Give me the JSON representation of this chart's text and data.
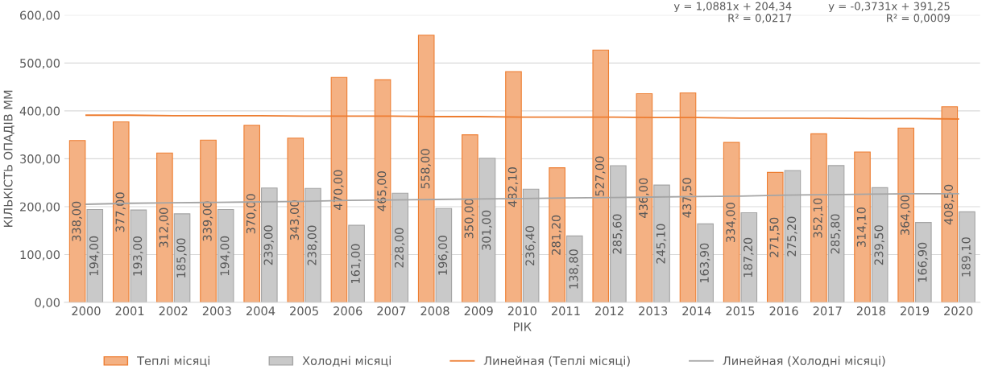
{
  "chart_data": {
    "type": "bar",
    "xlabel": "РІК",
    "ylabel": "КІЛЬКІСТЬ ОПАДІВ ММ",
    "categories": [
      "2000",
      "2001",
      "2002",
      "2003",
      "2004",
      "2005",
      "2006",
      "2007",
      "2008",
      "2009",
      "2010",
      "2011",
      "2012",
      "2013",
      "2014",
      "2015",
      "2016",
      "2017",
      "2018",
      "2019",
      "2020"
    ],
    "series": [
      {
        "name": "Теплі місяці",
        "color": "#f4b183",
        "values": [
          338,
          377,
          312,
          339,
          370,
          343,
          470,
          465,
          558,
          350,
          482.1,
          281.2,
          527,
          436,
          437.5,
          334,
          271.5,
          352.1,
          314.1,
          364,
          408.5
        ],
        "value_labels": [
          "338,00",
          "377,00",
          "312,00",
          "339,00",
          "370,00",
          "343,00",
          "470,00",
          "465,00",
          "558,00",
          "350,00",
          "482,10",
          "281,20",
          "527,00",
          "436,00",
          "437,50",
          "334,00",
          "271,50",
          "352,10",
          "314,10",
          "364,00",
          "408,50"
        ]
      },
      {
        "name": "Холодні місяці",
        "color": "#c9c9c9",
        "values": [
          194,
          193,
          185,
          194,
          239,
          238,
          161,
          228,
          196,
          301,
          236.4,
          138.8,
          285.6,
          245.1,
          163.9,
          187.2,
          275.2,
          285.8,
          239.5,
          166.9,
          189.1
        ],
        "value_labels": [
          "194,00",
          "193,00",
          "185,00",
          "194,00",
          "239,00",
          "238,00",
          "161,00",
          "228,00",
          "196,00",
          "301,00",
          "236,40",
          "138,80",
          "285,60",
          "245,10",
          "163,90",
          "187,20",
          "275,20",
          "285,80",
          "239,50",
          "166,90",
          "189,10"
        ]
      },
      {
        "name": "Линейная (Теплі місяці)",
        "type": "line",
        "color": "#ed7d31",
        "values": [
          391,
          391,
          390,
          390,
          390,
          389,
          389,
          389,
          388,
          388,
          387,
          387,
          387,
          386,
          386,
          385,
          385,
          385,
          384,
          384,
          383
        ]
      },
      {
        "name": "Линейная (Холодні місяці)",
        "type": "line",
        "color": "#a5a5a5",
        "values": [
          205,
          207,
          208,
          209,
          210,
          211,
          213,
          214,
          215,
          216,
          217,
          218,
          219,
          220,
          221,
          222,
          224,
          225,
          226,
          227,
          227
        ]
      }
    ],
    "ylim": [
      0,
      600
    ],
    "yticks": [
      {
        "value": 0,
        "label": "0,00"
      },
      {
        "value": 100,
        "label": "100,00"
      },
      {
        "value": 200,
        "label": "200,00"
      },
      {
        "value": 300,
        "label": "300,00"
      },
      {
        "value": 400,
        "label": "400,00"
      },
      {
        "value": 500,
        "label": "500,00"
      },
      {
        "value": 600,
        "label": "600,00"
      }
    ],
    "annotations": [
      "y = 1,0881x + 204,34\nR² = 0,0217",
      "y = -0,3731x + 391,25\nR² = 0,0009"
    ],
    "grid": "y",
    "legend": "bottom"
  }
}
